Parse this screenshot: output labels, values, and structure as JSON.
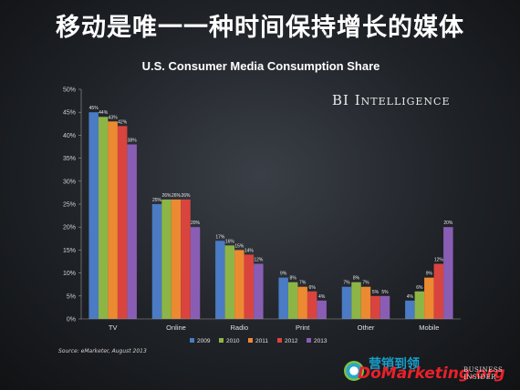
{
  "headline": "移动是唯一一种时间保持增长的媒体",
  "brand": "BI Intelligence",
  "source": "Source: eMarketer, August 2013",
  "watermark": {
    "cn_text": "营销到领",
    "url": "DoMarketing.org",
    "corner_line1": "BUSINESS",
    "corner_line2": "INSIDER"
  },
  "chart_data": {
    "type": "bar",
    "title": "U.S. Consumer Media Consumption Share",
    "xlabel": "",
    "ylabel": "",
    "ylim": [
      0,
      50
    ],
    "yticks": [
      "0%",
      "5%",
      "10%",
      "15%",
      "20%",
      "25%",
      "30%",
      "35%",
      "40%",
      "45%",
      "50%"
    ],
    "categories": [
      "TV",
      "Online",
      "Radio",
      "Print",
      "Other",
      "Mobile"
    ],
    "series": [
      {
        "name": "2009",
        "color": "#4a7bc4",
        "values": [
          45,
          25,
          17,
          9,
          7,
          4
        ]
      },
      {
        "name": "2010",
        "color": "#8db545",
        "values": [
          44,
          26,
          16,
          8,
          8,
          6
        ]
      },
      {
        "name": "2011",
        "color": "#ec8a32",
        "values": [
          43,
          26,
          15,
          7,
          7,
          9
        ]
      },
      {
        "name": "2012",
        "color": "#d9443e",
        "values": [
          42,
          26,
          14,
          6,
          5,
          12
        ]
      },
      {
        "name": "2013",
        "color": "#8a5db5",
        "values": [
          38,
          20,
          12,
          4,
          5,
          20
        ]
      }
    ],
    "legend_position": "bottom",
    "grid": false
  }
}
